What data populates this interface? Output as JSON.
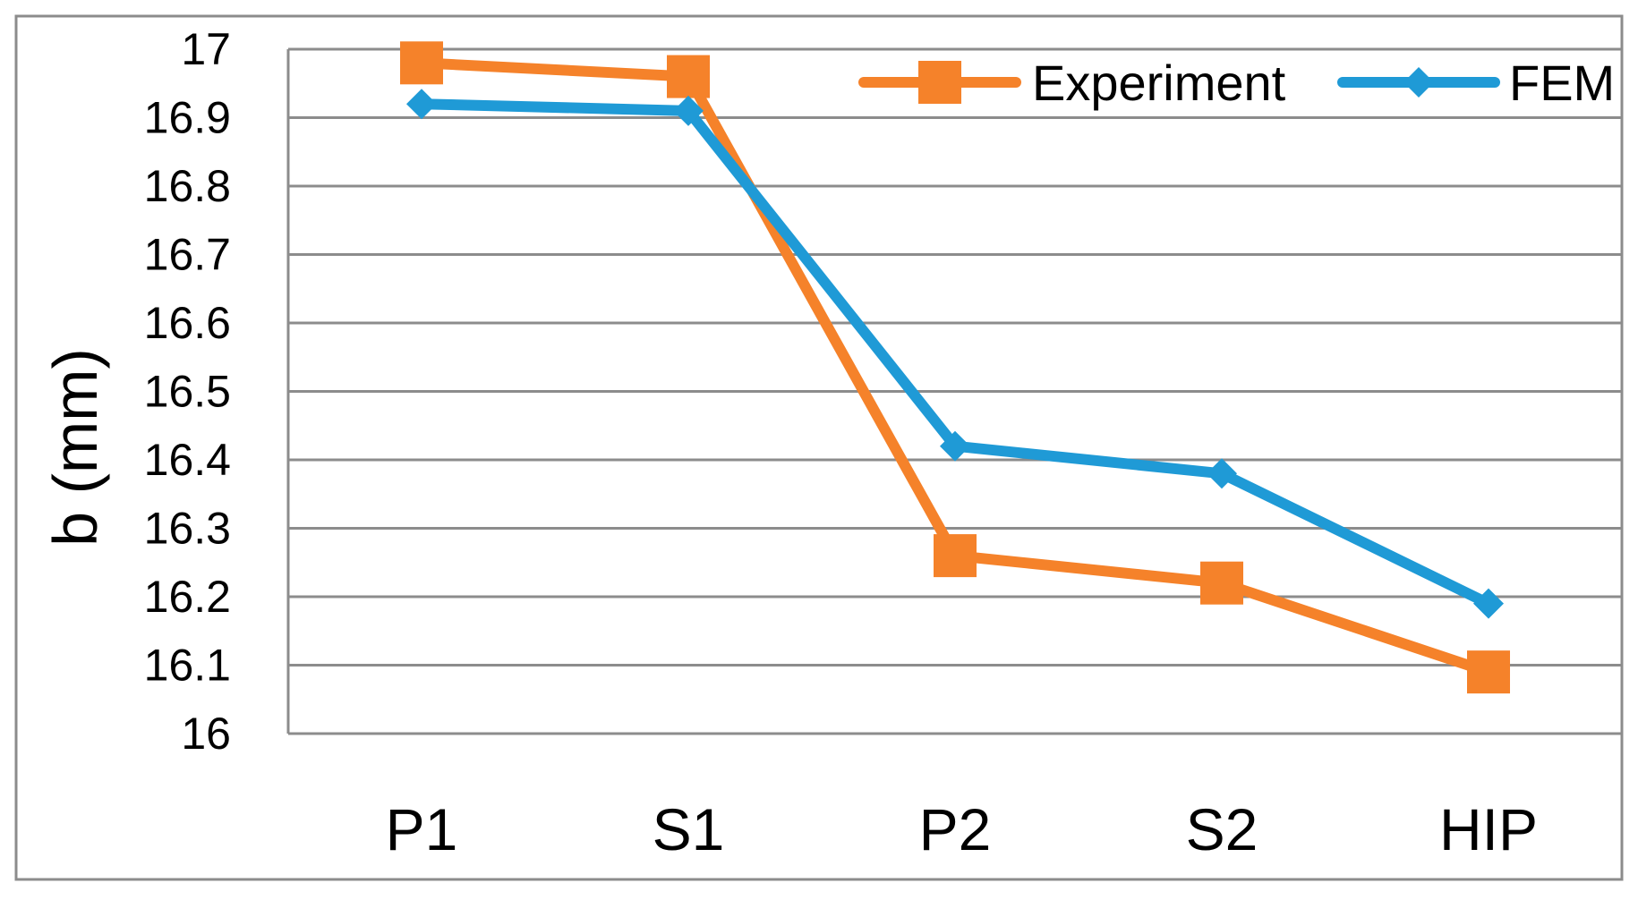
{
  "chart_data": {
    "type": "line",
    "title": "",
    "xlabel": "",
    "ylabel": "b (mm)",
    "categories": [
      "P1",
      "S1",
      "P2",
      "S2",
      "HIP"
    ],
    "ylim": [
      16,
      17
    ],
    "yticks": [
      16,
      16.1,
      16.2,
      16.3,
      16.4,
      16.5,
      16.6,
      16.7,
      16.8,
      16.9,
      17
    ],
    "ytick_labels": [
      "16",
      "16.1",
      "16.2",
      "16.3",
      "16.4",
      "16.5",
      "16.6",
      "16.7",
      "16.8",
      "16.9",
      "17"
    ],
    "grid": true,
    "legend_position": "top-right",
    "series": [
      {
        "name": "Experiment",
        "color": "#f5822a",
        "marker": "square",
        "values": [
          16.98,
          16.96,
          16.26,
          16.22,
          16.09
        ]
      },
      {
        "name": "FEM",
        "color": "#1f9ad6",
        "marker": "diamond",
        "values": [
          16.92,
          16.91,
          16.42,
          16.38,
          16.19
        ]
      }
    ]
  }
}
